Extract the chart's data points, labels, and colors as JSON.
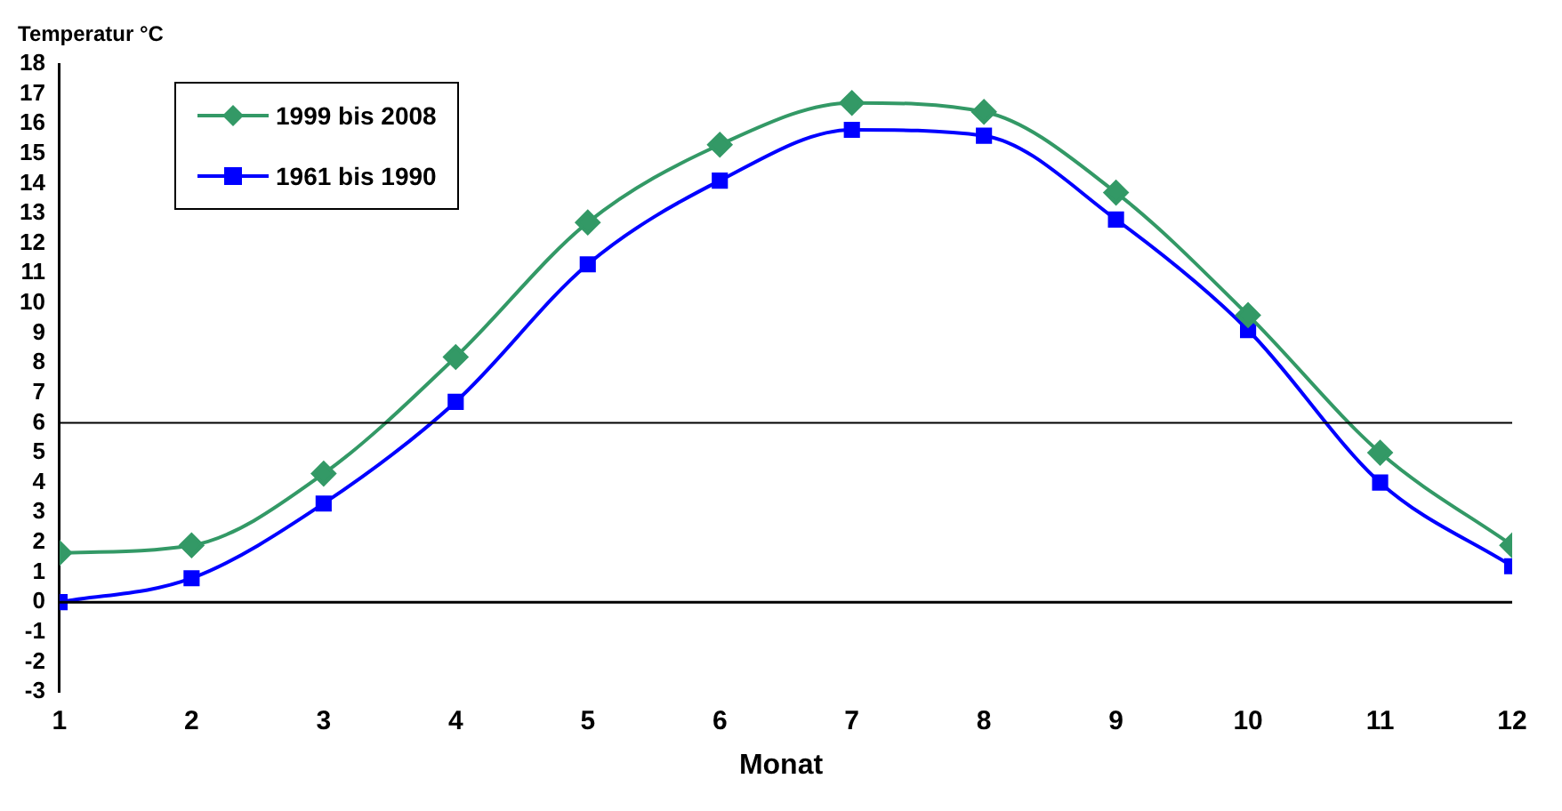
{
  "chart_data": {
    "type": "line",
    "ylabel": "Temperatur °C",
    "xlabel": "Monat",
    "x": [
      1,
      2,
      3,
      4,
      5,
      6,
      7,
      8,
      9,
      10,
      11,
      12
    ],
    "xlim": [
      1,
      12
    ],
    "xticks": [
      1,
      2,
      3,
      4,
      5,
      6,
      7,
      8,
      9,
      10,
      11,
      12
    ],
    "series": [
      {
        "name": "1999 bis 2008",
        "color": "#339966",
        "marker": "diamond",
        "values": [
          1.65,
          1.9,
          4.3,
          8.2,
          12.7,
          15.3,
          16.7,
          16.4,
          13.7,
          9.6,
          5.0,
          1.9
        ]
      },
      {
        "name": "1961 bis 1990",
        "color": "#0000ff",
        "marker": "square",
        "values": [
          0.0,
          0.8,
          3.3,
          6.7,
          11.3,
          14.1,
          15.8,
          15.6,
          12.8,
          9.1,
          4.0,
          1.2
        ]
      }
    ],
    "ylim": [
      -3,
      18
    ],
    "yticks": [
      -3,
      -2,
      -1,
      0,
      1,
      2,
      3,
      4,
      5,
      6,
      7,
      8,
      9,
      10,
      11,
      12,
      13,
      14,
      15,
      16,
      17,
      18
    ],
    "ref_lines": [
      {
        "axis": "y",
        "value": 6,
        "color": "#000000"
      }
    ],
    "grid": false,
    "legend": "top left",
    "line_style": "solid"
  }
}
